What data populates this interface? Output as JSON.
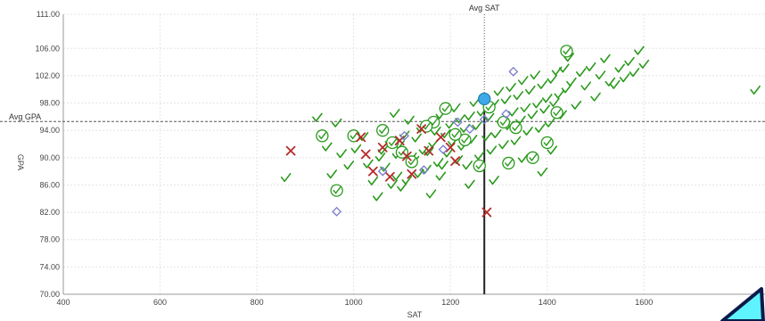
{
  "chart_data": {
    "type": "scatter",
    "xlabel": "SAT",
    "ylabel": "GPA",
    "xlim": [
      400,
      1850
    ],
    "ylim": [
      70,
      111
    ],
    "x_ticks": [
      "400",
      "600",
      "800",
      "1000",
      "1200",
      "1400",
      "1600"
    ],
    "y_ticks": [
      "70.00",
      "74.00",
      "78.00",
      "82.00",
      "86.00",
      "90.00",
      "94.00",
      "98.00",
      "102.00",
      "106.00",
      "111.00"
    ],
    "grid": true,
    "reference_lines": {
      "avg_sat": {
        "label": "Avg SAT",
        "value": 1270
      },
      "avg_gpa": {
        "label": "Avg GPA",
        "value": 95.3
      }
    },
    "colors": {
      "accepted": "#2a9a1c",
      "rejected": "#b52a2a",
      "other": "#7a7acc",
      "highlight": "#3fa8e8",
      "cursor": "#5ff3ff"
    },
    "series": [
      {
        "marker": "check",
        "points": [
          [
            860,
            87
          ],
          [
            925,
            95.8
          ],
          [
            945,
            91.5
          ],
          [
            955,
            87.5
          ],
          [
            965,
            95
          ],
          [
            975,
            90.5
          ],
          [
            990,
            88.8
          ],
          [
            1005,
            91.2
          ],
          [
            1020,
            93
          ],
          [
            1030,
            89
          ],
          [
            1040,
            86.5
          ],
          [
            1050,
            84.2
          ],
          [
            1055,
            90
          ],
          [
            1060,
            91
          ],
          [
            1065,
            88.5
          ],
          [
            1075,
            92.2
          ],
          [
            1080,
            86
          ],
          [
            1085,
            96.4
          ],
          [
            1090,
            87.2
          ],
          [
            1095,
            91.8
          ],
          [
            1100,
            85.6
          ],
          [
            1105,
            93.2
          ],
          [
            1110,
            86.6
          ],
          [
            1115,
            95.4
          ],
          [
            1120,
            90
          ],
          [
            1125,
            89.5
          ],
          [
            1130,
            92.8
          ],
          [
            1135,
            87.6
          ],
          [
            1140,
            94.2
          ],
          [
            1145,
            91
          ],
          [
            1150,
            88.2
          ],
          [
            1155,
            90.8
          ],
          [
            1160,
            95.2
          ],
          [
            1165,
            92
          ],
          [
            1170,
            93.8
          ],
          [
            1175,
            89.2
          ],
          [
            1180,
            96.2
          ],
          [
            1185,
            88.8
          ],
          [
            1190,
            93.4
          ],
          [
            1195,
            90.6
          ],
          [
            1200,
            94.8
          ],
          [
            1205,
            92.2
          ],
          [
            1210,
            97.2
          ],
          [
            1215,
            89.6
          ],
          [
            1220,
            95.6
          ],
          [
            1225,
            91.6
          ],
          [
            1230,
            94.2
          ],
          [
            1235,
            88.8
          ],
          [
            1240,
            96
          ],
          [
            1245,
            92.6
          ],
          [
            1250,
            98
          ],
          [
            1255,
            94.6
          ],
          [
            1260,
            90.2
          ],
          [
            1265,
            96.6
          ],
          [
            1275,
            93
          ],
          [
            1280,
            95.8
          ],
          [
            1285,
            91
          ],
          [
            1290,
            97.8
          ],
          [
            1295,
            93.4
          ],
          [
            1300,
            99.6
          ],
          [
            1305,
            95.2
          ],
          [
            1310,
            91.8
          ],
          [
            1315,
            98.4
          ],
          [
            1320,
            94.6
          ],
          [
            1325,
            100.2
          ],
          [
            1330,
            96.6
          ],
          [
            1335,
            92.4
          ],
          [
            1340,
            99
          ],
          [
            1345,
            95.4
          ],
          [
            1350,
            101.2
          ],
          [
            1355,
            97.2
          ],
          [
            1360,
            93.8
          ],
          [
            1365,
            99.8
          ],
          [
            1370,
            96.2
          ],
          [
            1375,
            102
          ],
          [
            1380,
            97.8
          ],
          [
            1385,
            94.2
          ],
          [
            1390,
            100.6
          ],
          [
            1395,
            97
          ],
          [
            1400,
            98.6
          ],
          [
            1405,
            95
          ],
          [
            1410,
            101.4
          ],
          [
            1415,
            98
          ],
          [
            1420,
            102.6
          ],
          [
            1425,
            99.2
          ],
          [
            1430,
            96.2
          ],
          [
            1435,
            103
          ],
          [
            1440,
            100
          ],
          [
            1445,
            104.6
          ],
          [
            1450,
            101
          ],
          [
            1460,
            97.6
          ],
          [
            1470,
            102.4
          ],
          [
            1480,
            100.4
          ],
          [
            1490,
            103.2
          ],
          [
            1500,
            98.8
          ],
          [
            1510,
            102
          ],
          [
            1520,
            104.4
          ],
          [
            1530,
            101
          ],
          [
            1540,
            100.6
          ],
          [
            1550,
            103
          ],
          [
            1560,
            101.6
          ],
          [
            1570,
            104
          ],
          [
            1580,
            102.4
          ],
          [
            1590,
            105.6
          ],
          [
            1600,
            103.6
          ],
          [
            1240,
            86
          ],
          [
            1180,
            87.2
          ],
          [
            1350,
            89.8
          ],
          [
            1390,
            87.8
          ],
          [
            1410,
            91
          ],
          [
            1830,
            99.8
          ],
          [
            1290,
            86.6
          ],
          [
            1160,
            84.6
          ],
          [
            1090,
            90.4
          ]
        ]
      },
      {
        "marker": "circle-check",
        "points": [
          [
            935,
            93.2
          ],
          [
            965,
            85.2
          ],
          [
            1000,
            93.2
          ],
          [
            1080,
            92.2
          ],
          [
            1120,
            89.4
          ],
          [
            1165,
            95.2
          ],
          [
            1190,
            97.2
          ],
          [
            1230,
            92.6
          ],
          [
            1260,
            88.8
          ],
          [
            1280,
            97.4
          ],
          [
            1310,
            95.2
          ],
          [
            1335,
            94.4
          ],
          [
            1370,
            90
          ],
          [
            1400,
            92.2
          ],
          [
            1420,
            96.6
          ],
          [
            1440,
            105.6
          ],
          [
            1320,
            89.2
          ],
          [
            1270,
            98.6
          ],
          [
            1210,
            93.4
          ],
          [
            1150,
            94.6
          ],
          [
            1100,
            90.8
          ],
          [
            1060,
            94
          ]
        ]
      },
      {
        "marker": "x",
        "points": [
          [
            870,
            91
          ],
          [
            1015,
            93
          ],
          [
            1025,
            90.5
          ],
          [
            1040,
            88
          ],
          [
            1060,
            91.5
          ],
          [
            1075,
            87.2
          ],
          [
            1095,
            92.5
          ],
          [
            1110,
            90.2
          ],
          [
            1120,
            87.6
          ],
          [
            1140,
            94.2
          ],
          [
            1155,
            91
          ],
          [
            1180,
            93
          ],
          [
            1200,
            91.5
          ],
          [
            1210,
            89.5
          ],
          [
            1275,
            82
          ]
        ]
      },
      {
        "marker": "diamond",
        "points": [
          [
            965,
            82.1
          ],
          [
            1060,
            88
          ],
          [
            1105,
            93.2
          ],
          [
            1145,
            88.2
          ],
          [
            1185,
            91.2
          ],
          [
            1215,
            95.2
          ],
          [
            1240,
            94.2
          ],
          [
            1270,
            95.6
          ],
          [
            1315,
            96.4
          ],
          [
            1330,
            102.6
          ]
        ]
      },
      {
        "marker": "dot",
        "points": [
          [
            1270,
            98.6
          ]
        ]
      }
    ]
  }
}
